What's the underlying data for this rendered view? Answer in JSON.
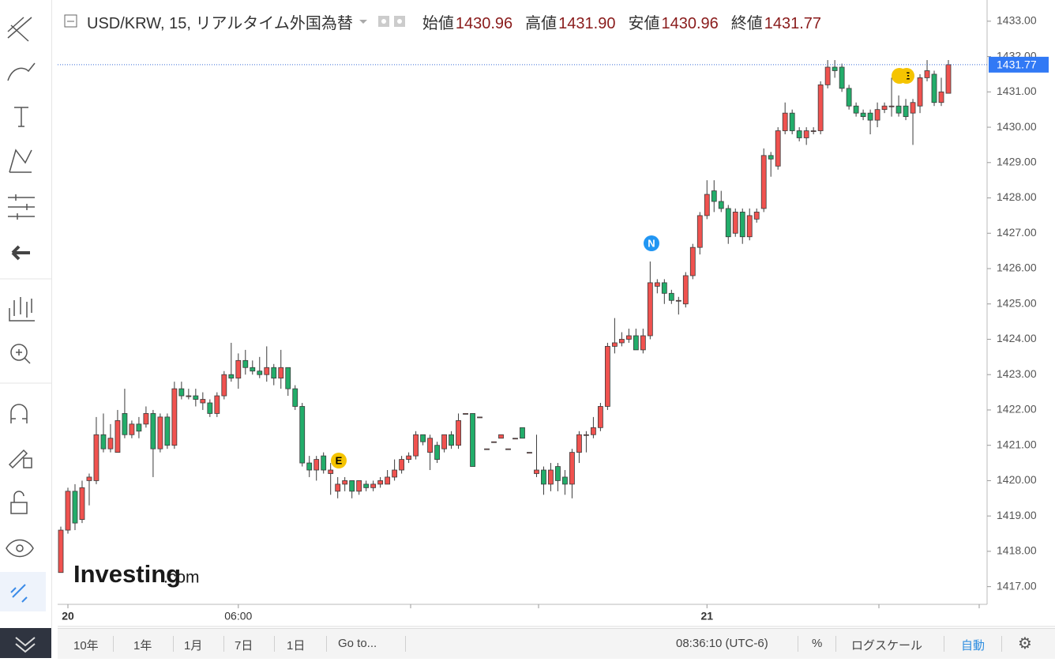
{
  "header": {
    "title": "USD/KRW, 15, リアルタイム外国為替",
    "ohlc": [
      {
        "name": "始値",
        "value": "1430.96"
      },
      {
        "name": "高値",
        "value": "1431.90"
      },
      {
        "name": "安値",
        "value": "1430.96"
      },
      {
        "name": "終値",
        "value": "1431.77"
      }
    ]
  },
  "chart_data": {
    "type": "candlestick",
    "up_color": "#f0524f",
    "down_color": "#22ad6a",
    "border_color": "#3a3a3a",
    "ylim": [
      1416.5,
      1433.6
    ],
    "yticks": [
      {
        "value": 1417,
        "label": "1417.00"
      },
      {
        "value": 1418,
        "label": "1418.00"
      },
      {
        "value": 1419,
        "label": "1419.00"
      },
      {
        "value": 1420,
        "label": "1420.00"
      },
      {
        "value": 1421,
        "label": "1421.00"
      },
      {
        "value": 1422,
        "label": "1422.00"
      },
      {
        "value": 1423,
        "label": "1423.00"
      },
      {
        "value": 1424,
        "label": "1424.00"
      },
      {
        "value": 1425,
        "label": "1425.00"
      },
      {
        "value": 1426,
        "label": "1426.00"
      },
      {
        "value": 1427,
        "label": "1427.00"
      },
      {
        "value": 1428,
        "label": "1428.00"
      },
      {
        "value": 1429,
        "label": "1429.00"
      },
      {
        "value": 1430,
        "label": "1430.00"
      },
      {
        "value": 1431,
        "label": "1431.00"
      },
      {
        "value": 1432,
        "label": "1432.00"
      },
      {
        "value": 1433,
        "label": "1433.00"
      }
    ],
    "last_price": {
      "value": 1431.77,
      "label": "1431.77"
    },
    "categories": [
      null,
      "20",
      null,
      null,
      null,
      null,
      null,
      null,
      null,
      null,
      null,
      null,
      null,
      null,
      null,
      null,
      null,
      null,
      null,
      null,
      null,
      null,
      null,
      null,
      null,
      "06:00",
      null,
      null,
      null,
      null,
      null,
      null,
      null,
      null,
      null,
      null,
      null,
      null,
      null,
      null,
      null,
      null,
      null,
      null,
      null,
      null,
      null,
      null,
      null,
      null,
      null,
      null,
      null,
      null,
      null,
      null,
      null,
      null,
      null,
      null,
      null,
      null,
      null,
      null,
      null,
      null,
      null,
      null,
      null,
      null,
      null,
      null,
      null,
      null,
      null,
      null,
      null,
      null,
      null,
      null,
      null,
      null,
      null,
      null,
      null,
      null,
      null,
      null,
      null,
      null,
      null,
      "21",
      null,
      null,
      null,
      null,
      null,
      null,
      null,
      null,
      null,
      null,
      null,
      null,
      null,
      null,
      null,
      null,
      null,
      null,
      null,
      null,
      null,
      null,
      null,
      null,
      null,
      null,
      null,
      null,
      null,
      null,
      null,
      null,
      null,
      null
    ],
    "open": [
      1417.4,
      1418.6,
      1419.7,
      1418.9,
      1420.0,
      1420.0,
      1421.3,
      1420.9,
      1420.8,
      1421.9,
      1421.3,
      1421.6,
      1421.6,
      1421.9,
      1420.9,
      1421.8,
      1421.0,
      1422.6,
      1422.4,
      1422.4,
      1422.2,
      1422.2,
      1421.9,
      1422.4,
      1423.0,
      1422.9,
      1423.4,
      1423.2,
      1423.1,
      1423.0,
      1423.2,
      1422.9,
      1423.2,
      1422.6,
      1422.1,
      1420.5,
      1420.3,
      1420.7,
      1420.2,
      1419.7,
      1419.9,
      1420.0,
      1419.7,
      1419.9,
      1419.8,
      1419.9,
      1419.9,
      1420.1,
      1420.3,
      1420.6,
      1420.7,
      1421.3,
      1420.8,
      1421.0,
      1420.9,
      1421.3,
      1421.0,
      1421.9,
      1421.9,
      1421.8,
      1420.9,
      1421.1,
      1421.2,
      1420.9,
      1421.2,
      1421.5,
      1420.8,
      1420.2,
      1420.3,
      1419.9,
      1420.4,
      1420.1,
      1419.9,
      1420.8,
      1421.3,
      1421.3,
      1421.5,
      1422.1,
      1423.8,
      1423.9,
      1424.0,
      1424.1,
      1423.7,
      1424.1,
      1425.5,
      1425.6,
      1425.3,
      1425.1,
      1425.0,
      1425.8,
      1426.6,
      1427.5,
      1428.2,
      1427.9,
      1427.7,
      1427.0,
      1427.6,
      1426.9,
      1427.4,
      1427.7,
      1429.2,
      1428.9,
      1429.9,
      1430.4,
      1429.9,
      1429.7,
      1429.9,
      1429.9,
      1431.2,
      1431.7,
      1431.7,
      1431.1,
      1430.6,
      1430.4,
      1430.4,
      1430.2,
      1430.5,
      1430.6,
      1430.6,
      1430.6,
      1430.4,
      1430.6,
      1431.4,
      1431.5,
      1430.7,
      1430.96
    ],
    "high": [
      1418.7,
      1419.8,
      1419.9,
      1420.0,
      1420.2,
      1421.8,
      1421.9,
      1421.6,
      1422.0,
      1422.6,
      1421.7,
      1421.8,
      1422.1,
      1422.0,
      1421.9,
      1421.9,
      1422.8,
      1422.8,
      1422.6,
      1422.6,
      1422.5,
      1422.3,
      1422.5,
      1423.1,
      1423.9,
      1423.6,
      1423.7,
      1423.4,
      1423.5,
      1423.8,
      1423.3,
      1423.7,
      1423.2,
      1422.7,
      1422.2,
      1420.7,
      1420.7,
      1420.8,
      1420.5,
      1420.1,
      1420.1,
      1420.0,
      1420.0,
      1420.0,
      1420.0,
      1420.1,
      1420.3,
      1420.6,
      1420.7,
      1420.8,
      1421.4,
      1421.3,
      1421.3,
      1421.1,
      1421.3,
      1421.4,
      1421.9,
      1421.9,
      1421.9,
      1421.8,
      1420.9,
      1421.1,
      1421.3,
      1420.9,
      1421.2,
      1421.5,
      1420.8,
      1421.3,
      1420.4,
      1420.5,
      1420.5,
      1420.3,
      1420.9,
      1421.4,
      1421.4,
      1421.8,
      1422.2,
      1423.9,
      1424.6,
      1424.2,
      1424.3,
      1424.3,
      1424.3,
      1426.2,
      1425.7,
      1425.7,
      1425.4,
      1425.2,
      1425.9,
      1426.7,
      1427.6,
      1428.5,
      1428.5,
      1428.2,
      1427.8,
      1427.7,
      1427.7,
      1427.7,
      1427.7,
      1429.4,
      1429.3,
      1430.0,
      1430.7,
      1430.5,
      1430.0,
      1430.0,
      1430.0,
      1431.3,
      1431.9,
      1431.9,
      1431.8,
      1431.2,
      1430.7,
      1430.5,
      1430.5,
      1430.7,
      1430.7,
      1431.4,
      1430.9,
      1430.8,
      1430.8,
      1431.5,
      1431.9,
      1431.6,
      1431.4,
      1431.9
    ],
    "low": [
      1417.4,
      1418.5,
      1418.6,
      1418.8,
      1419.3,
      1419.9,
      1420.8,
      1420.8,
      1420.8,
      1421.2,
      1421.2,
      1421.2,
      1421.5,
      1420.1,
      1420.8,
      1420.9,
      1420.9,
      1422.3,
      1422.3,
      1422.1,
      1422.0,
      1421.8,
      1421.8,
      1422.3,
      1422.8,
      1422.6,
      1423.0,
      1423.0,
      1422.9,
      1422.8,
      1422.7,
      1422.6,
      1422.4,
      1422.0,
      1420.4,
      1420.1,
      1420.0,
      1420.2,
      1419.6,
      1419.5,
      1419.7,
      1419.5,
      1419.6,
      1419.7,
      1419.7,
      1419.8,
      1419.9,
      1420.0,
      1420.2,
      1420.5,
      1420.6,
      1421.0,
      1420.3,
      1420.5,
      1420.8,
      1420.9,
      1420.9,
      1421.9,
      1420.4,
      1421.8,
      1420.9,
      1421.1,
      1421.2,
      1420.9,
      1421.2,
      1421.2,
      1420.8,
      1420.1,
      1419.6,
      1419.7,
      1419.7,
      1419.6,
      1419.5,
      1420.5,
      1420.8,
      1421.2,
      1421.4,
      1422.0,
      1423.6,
      1423.8,
      1423.9,
      1423.7,
      1423.6,
      1424.0,
      1425.3,
      1425.0,
      1425.0,
      1424.7,
      1424.9,
      1425.7,
      1426.4,
      1427.4,
      1427.6,
      1427.6,
      1426.7,
      1426.9,
      1426.7,
      1426.8,
      1427.3,
      1427.6,
      1428.6,
      1428.8,
      1429.8,
      1429.8,
      1429.6,
      1429.5,
      1429.8,
      1429.8,
      1431.1,
      1431.4,
      1431.0,
      1430.5,
      1430.3,
      1430.2,
      1429.8,
      1430.0,
      1430.4,
      1430.3,
      1430.3,
      1430.2,
      1429.5,
      1430.4,
      1431.3,
      1430.6,
      1430.6,
      1430.96
    ],
    "close": [
      1418.6,
      1419.7,
      1418.8,
      1419.8,
      1420.1,
      1421.3,
      1420.9,
      1421.2,
      1421.7,
      1421.3,
      1421.6,
      1421.4,
      1421.9,
      1420.9,
      1421.8,
      1421.0,
      1422.6,
      1422.4,
      1422.4,
      1422.3,
      1422.3,
      1421.9,
      1422.4,
      1423.0,
      1422.9,
      1423.4,
      1423.2,
      1423.1,
      1423.0,
      1423.2,
      1422.9,
      1423.2,
      1422.6,
      1422.1,
      1420.5,
      1420.3,
      1420.6,
      1420.3,
      1420.3,
      1419.9,
      1420.0,
      1419.7,
      1420.0,
      1419.8,
      1419.9,
      1420.0,
      1420.1,
      1420.3,
      1420.6,
      1420.7,
      1421.3,
      1421.1,
      1421.2,
      1420.6,
      1421.3,
      1421.0,
      1421.7,
      1421.9,
      1420.4,
      1421.8,
      1420.9,
      1421.1,
      1421.3,
      1420.9,
      1421.2,
      1421.2,
      1420.8,
      1420.3,
      1419.9,
      1420.3,
      1420.0,
      1419.9,
      1420.8,
      1421.3,
      1421.3,
      1421.5,
      1422.1,
      1423.8,
      1423.9,
      1424.0,
      1424.1,
      1423.7,
      1424.1,
      1425.6,
      1425.6,
      1425.3,
      1425.1,
      1425.1,
      1425.8,
      1426.6,
      1427.5,
      1428.1,
      1427.9,
      1427.7,
      1426.9,
      1427.6,
      1426.9,
      1427.5,
      1427.6,
      1429.2,
      1429.1,
      1429.9,
      1430.4,
      1429.9,
      1429.7,
      1429.9,
      1429.9,
      1431.2,
      1431.7,
      1431.6,
      1431.1,
      1430.6,
      1430.4,
      1430.3,
      1430.2,
      1430.5,
      1430.6,
      1430.6,
      1430.4,
      1430.3,
      1430.7,
      1431.4,
      1431.6,
      1430.7,
      1431.0,
      1431.77
    ],
    "events": [
      {
        "label": "E"
      },
      {
        "label": "N"
      },
      {
        "label": "E"
      }
    ]
  },
  "watermark": {
    "brand": "Investing",
    "suffix": ".com"
  },
  "toolbar": {
    "ranges": [
      "10年",
      "1年",
      "1月",
      "7日",
      "1日"
    ],
    "goto": "Go to...",
    "time": "08:36:10 (UTC-6)",
    "percent": "%",
    "log": "ログスケール",
    "auto": "自動"
  }
}
